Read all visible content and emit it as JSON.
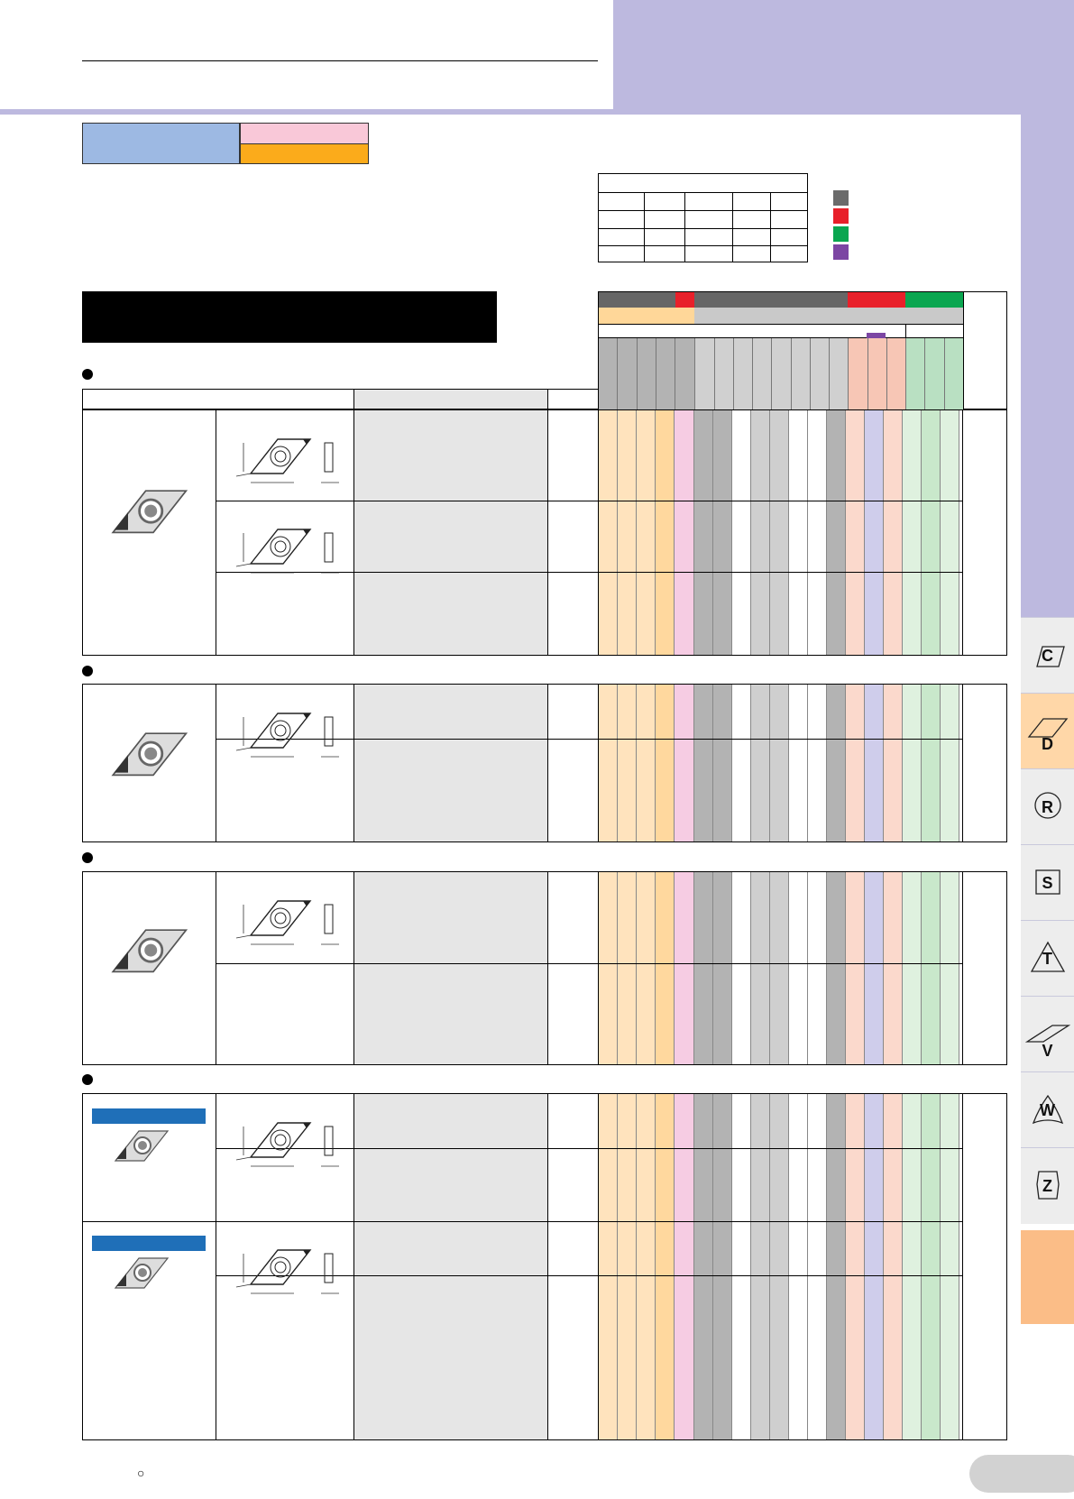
{
  "colors": {
    "header_band": "#bdb9df",
    "material_blue": "#9db9e3",
    "material_pink": "#f9c8d8",
    "material_orange": "#fbab1b",
    "steel": "#ffe3bd",
    "stainless": "#f6cce3",
    "cast": "#b3b3b3",
    "nonferrous": "#f7c6b5",
    "heat": "#cfcdeb",
    "hard": "#dff1df",
    "tab_active": "#ffd7a8",
    "tab_bottom": "#fbbd87",
    "pill": "#d2d2d2"
  },
  "side_tabs": [
    {
      "label": "C",
      "icon": "rhombus-80-icon"
    },
    {
      "label": "D",
      "icon": "rhombus-55-icon"
    },
    {
      "label": "R",
      "icon": "circle-icon"
    },
    {
      "label": "S",
      "icon": "square-icon"
    },
    {
      "label": "T",
      "icon": "triangle-icon"
    },
    {
      "label": "V",
      "icon": "rhombus-35-icon"
    },
    {
      "label": "W",
      "icon": "trigon-icon"
    },
    {
      "label": "Z",
      "icon": "hexagon-icon"
    }
  ],
  "footer": {
    "circle_mark": "○"
  }
}
